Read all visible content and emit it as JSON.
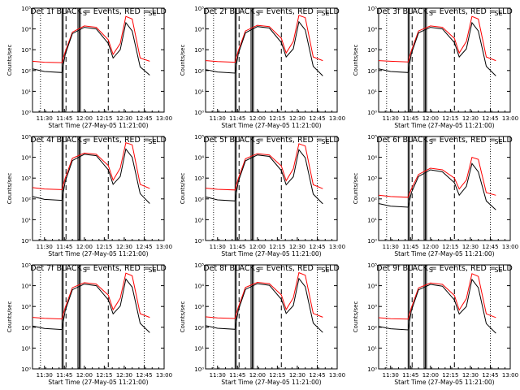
{
  "chart_data": {
    "type": "line",
    "yscale": "log",
    "ylim": [
      1,
      100000
    ],
    "xlim": [
      "11:21",
      "13:00"
    ],
    "grid": false,
    "ylabel": "Counts/sec",
    "xlabel": "Start Time (27-May-05 11:21:00)",
    "xticks": [
      "11:30",
      "11:45",
      "12:00",
      "12:15",
      "12:30",
      "12:45",
      "13:00"
    ],
    "yticks": [
      "10⁰",
      "10¹",
      "10²",
      "10³",
      "10⁴",
      "10⁵"
    ],
    "series_legend": {
      "black": "BLACK = Events",
      "red": "RED = LLD"
    },
    "colors": {
      "events": "#000000",
      "lld": "#ff0000",
      "axes": "#000000"
    },
    "flag_labels": [
      "S",
      "SE"
    ],
    "panels": [
      {
        "title": "Det 1f BLACK = Events, RED = LLD",
        "red": [
          [
            11.35,
            280
          ],
          [
            11.5,
            250
          ],
          [
            11.72,
            240
          ],
          [
            11.76,
            800
          ],
          [
            11.85,
            7000
          ],
          [
            12.0,
            14000
          ],
          [
            12.15,
            12000
          ],
          [
            12.3,
            3000
          ],
          [
            12.36,
            600
          ],
          [
            12.45,
            2000
          ],
          [
            12.52,
            40000
          ],
          [
            12.6,
            30000
          ],
          [
            12.7,
            400
          ],
          [
            12.82,
            280
          ]
        ],
        "black": [
          [
            11.35,
            120
          ],
          [
            11.5,
            90
          ],
          [
            11.72,
            80
          ],
          [
            11.76,
            600
          ],
          [
            11.85,
            6000
          ],
          [
            12.0,
            12000
          ],
          [
            12.15,
            10000
          ],
          [
            12.3,
            2000
          ],
          [
            12.36,
            400
          ],
          [
            12.45,
            1000
          ],
          [
            12.52,
            20000
          ],
          [
            12.6,
            8000
          ],
          [
            12.7,
            150
          ],
          [
            12.82,
            60
          ]
        ]
      },
      {
        "title": "Det 2f BLACK = Events, RED = LLD",
        "red": [
          [
            11.35,
            300
          ],
          [
            11.5,
            270
          ],
          [
            11.72,
            250
          ],
          [
            11.76,
            900
          ],
          [
            11.85,
            8000
          ],
          [
            12.0,
            15000
          ],
          [
            12.15,
            13000
          ],
          [
            12.3,
            3500
          ],
          [
            12.36,
            700
          ],
          [
            12.45,
            2500
          ],
          [
            12.52,
            45000
          ],
          [
            12.6,
            35000
          ],
          [
            12.7,
            450
          ],
          [
            12.82,
            300
          ]
        ],
        "black": [
          [
            11.35,
            110
          ],
          [
            11.5,
            85
          ],
          [
            11.72,
            75
          ],
          [
            11.76,
            650
          ],
          [
            11.85,
            6500
          ],
          [
            12.0,
            13000
          ],
          [
            12.15,
            11000
          ],
          [
            12.3,
            2200
          ],
          [
            12.36,
            450
          ],
          [
            12.45,
            1100
          ],
          [
            12.52,
            22000
          ],
          [
            12.6,
            9000
          ],
          [
            12.7,
            160
          ],
          [
            12.82,
            55
          ]
        ]
      },
      {
        "title": "Det 3f BLACK = Events, RED = LLD",
        "red": [
          [
            11.35,
            300
          ],
          [
            11.5,
            280
          ],
          [
            11.72,
            260
          ],
          [
            11.76,
            900
          ],
          [
            11.85,
            8000
          ],
          [
            12.0,
            14000
          ],
          [
            12.15,
            12000
          ],
          [
            12.3,
            3500
          ],
          [
            12.36,
            700
          ],
          [
            12.45,
            2500
          ],
          [
            12.52,
            40000
          ],
          [
            12.6,
            30000
          ],
          [
            12.7,
            450
          ],
          [
            12.82,
            300
          ]
        ],
        "black": [
          [
            11.35,
            120
          ],
          [
            11.5,
            90
          ],
          [
            11.72,
            80
          ],
          [
            11.76,
            650
          ],
          [
            11.85,
            6500
          ],
          [
            12.0,
            12000
          ],
          [
            12.15,
            10000
          ],
          [
            12.3,
            2200
          ],
          [
            12.36,
            450
          ],
          [
            12.45,
            1100
          ],
          [
            12.52,
            20000
          ],
          [
            12.6,
            8000
          ],
          [
            12.7,
            160
          ],
          [
            12.82,
            55
          ]
        ]
      },
      {
        "title": "Det 4f BLACK = Events, RED = LLD",
        "red": [
          [
            11.35,
            350
          ],
          [
            11.5,
            300
          ],
          [
            11.72,
            280
          ],
          [
            11.76,
            1000
          ],
          [
            11.85,
            9000
          ],
          [
            12.0,
            16000
          ],
          [
            12.15,
            14000
          ],
          [
            12.3,
            4000
          ],
          [
            12.36,
            800
          ],
          [
            12.45,
            3000
          ],
          [
            12.52,
            50000
          ],
          [
            12.6,
            40000
          ],
          [
            12.7,
            500
          ],
          [
            12.82,
            320
          ]
        ],
        "black": [
          [
            11.35,
            130
          ],
          [
            11.5,
            95
          ],
          [
            11.72,
            85
          ],
          [
            11.76,
            700
          ],
          [
            11.85,
            7000
          ],
          [
            12.0,
            14000
          ],
          [
            12.15,
            12000
          ],
          [
            12.3,
            2500
          ],
          [
            12.36,
            500
          ],
          [
            12.45,
            1200
          ],
          [
            12.52,
            25000
          ],
          [
            12.6,
            10000
          ],
          [
            12.7,
            180
          ],
          [
            12.82,
            60
          ]
        ]
      },
      {
        "title": "Det 5f BLACK = Events, RED = LLD",
        "red": [
          [
            11.35,
            330
          ],
          [
            11.5,
            290
          ],
          [
            11.72,
            270
          ],
          [
            11.76,
            950
          ],
          [
            11.85,
            8500
          ],
          [
            12.0,
            15000
          ],
          [
            12.15,
            13000
          ],
          [
            12.3,
            3800
          ],
          [
            12.36,
            750
          ],
          [
            12.45,
            2800
          ],
          [
            12.52,
            45000
          ],
          [
            12.6,
            35000
          ],
          [
            12.7,
            480
          ],
          [
            12.82,
            310
          ]
        ],
        "black": [
          [
            11.35,
            125
          ],
          [
            11.5,
            90
          ],
          [
            11.72,
            80
          ],
          [
            11.76,
            680
          ],
          [
            11.85,
            6800
          ],
          [
            12.0,
            13000
          ],
          [
            12.15,
            11000
          ],
          [
            12.3,
            2300
          ],
          [
            12.36,
            480
          ],
          [
            12.45,
            1150
          ],
          [
            12.52,
            23000
          ],
          [
            12.6,
            9500
          ],
          [
            12.7,
            170
          ],
          [
            12.82,
            58
          ]
        ]
      },
      {
        "title": "Det 6f BLACK = Events, RED = LLD",
        "red": [
          [
            11.35,
            150
          ],
          [
            11.5,
            130
          ],
          [
            11.72,
            120
          ],
          [
            11.76,
            300
          ],
          [
            11.85,
            1500
          ],
          [
            12.0,
            3000
          ],
          [
            12.15,
            2500
          ],
          [
            12.3,
            1000
          ],
          [
            12.36,
            300
          ],
          [
            12.45,
            800
          ],
          [
            12.52,
            10000
          ],
          [
            12.6,
            8000
          ],
          [
            12.7,
            200
          ],
          [
            12.82,
            150
          ]
        ],
        "black": [
          [
            11.35,
            60
          ],
          [
            11.5,
            45
          ],
          [
            11.72,
            40
          ],
          [
            11.76,
            200
          ],
          [
            11.85,
            1200
          ],
          [
            12.0,
            2500
          ],
          [
            12.15,
            2000
          ],
          [
            12.3,
            600
          ],
          [
            12.36,
            150
          ],
          [
            12.45,
            400
          ],
          [
            12.52,
            5000
          ],
          [
            12.6,
            2000
          ],
          [
            12.7,
            80
          ],
          [
            12.82,
            30
          ]
        ]
      },
      {
        "title": "Det 7f BLACK = Events, RED = LLD",
        "red": [
          [
            11.35,
            300
          ],
          [
            11.5,
            270
          ],
          [
            11.72,
            250
          ],
          [
            11.76,
            900
          ],
          [
            11.85,
            8000
          ],
          [
            12.0,
            14000
          ],
          [
            12.15,
            12000
          ],
          [
            12.3,
            3500
          ],
          [
            12.36,
            700
          ],
          [
            12.45,
            2500
          ],
          [
            12.52,
            40000
          ],
          [
            12.6,
            30000
          ],
          [
            12.7,
            450
          ],
          [
            12.82,
            300
          ]
        ],
        "black": [
          [
            11.35,
            115
          ],
          [
            11.5,
            88
          ],
          [
            11.72,
            78
          ],
          [
            11.76,
            640
          ],
          [
            11.85,
            6400
          ],
          [
            12.0,
            12000
          ],
          [
            12.15,
            10000
          ],
          [
            12.3,
            2100
          ],
          [
            12.36,
            440
          ],
          [
            12.45,
            1050
          ],
          [
            12.52,
            21000
          ],
          [
            12.6,
            8500
          ],
          [
            12.7,
            155
          ],
          [
            12.82,
            55
          ]
        ]
      },
      {
        "title": "Det 8f BLACK = Events, RED = LLD",
        "red": [
          [
            11.35,
            320
          ],
          [
            11.5,
            285
          ],
          [
            11.72,
            265
          ],
          [
            11.76,
            920
          ],
          [
            11.85,
            8200
          ],
          [
            12.0,
            14500
          ],
          [
            12.15,
            12500
          ],
          [
            12.3,
            3600
          ],
          [
            12.36,
            720
          ],
          [
            12.45,
            2600
          ],
          [
            12.52,
            42000
          ],
          [
            12.6,
            32000
          ],
          [
            12.7,
            460
          ],
          [
            12.82,
            305
          ]
        ],
        "black": [
          [
            11.35,
            120
          ],
          [
            11.5,
            90
          ],
          [
            11.72,
            80
          ],
          [
            11.76,
            660
          ],
          [
            11.85,
            6600
          ],
          [
            12.0,
            12500
          ],
          [
            12.15,
            10500
          ],
          [
            12.3,
            2200
          ],
          [
            12.36,
            460
          ],
          [
            12.45,
            1100
          ],
          [
            12.52,
            22000
          ],
          [
            12.6,
            9000
          ],
          [
            12.7,
            160
          ],
          [
            12.82,
            56
          ]
        ]
      },
      {
        "title": "Det 9f BLACK = Events, RED = LLD",
        "red": [
          [
            11.35,
            290
          ],
          [
            11.5,
            260
          ],
          [
            11.72,
            245
          ],
          [
            11.76,
            880
          ],
          [
            11.85,
            7800
          ],
          [
            12.0,
            13500
          ],
          [
            12.15,
            11500
          ],
          [
            12.3,
            3400
          ],
          [
            12.36,
            680
          ],
          [
            12.45,
            2400
          ],
          [
            12.52,
            38000
          ],
          [
            12.6,
            28000
          ],
          [
            12.7,
            440
          ],
          [
            12.82,
            295
          ]
        ],
        "black": [
          [
            11.35,
            110
          ],
          [
            11.5,
            85
          ],
          [
            11.72,
            75
          ],
          [
            11.76,
            630
          ],
          [
            11.85,
            6300
          ],
          [
            12.0,
            11500
          ],
          [
            12.15,
            9500
          ],
          [
            12.3,
            2050
          ],
          [
            12.36,
            430
          ],
          [
            12.45,
            1000
          ],
          [
            12.52,
            20000
          ],
          [
            12.6,
            8000
          ],
          [
            12.7,
            150
          ],
          [
            12.82,
            52
          ]
        ]
      }
    ]
  }
}
